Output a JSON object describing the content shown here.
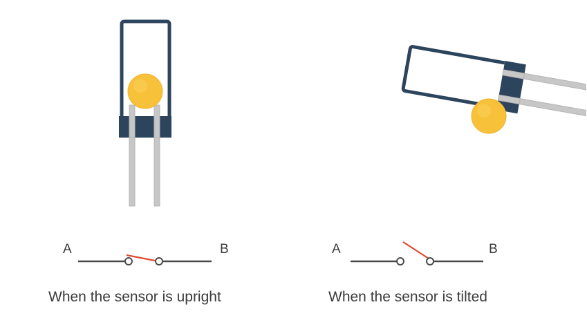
{
  "left": {
    "caption": "When the sensor is upright",
    "terminal_a": "A",
    "terminal_b": "B"
  },
  "right": {
    "caption": "When the sensor is tilted",
    "terminal_a": "A",
    "terminal_b": "B"
  },
  "colors": {
    "housing": "#2d445d",
    "ball": "#f7c13a",
    "pin": "#c7c7c7",
    "wire": "#4a4a4a",
    "switch": "#e0492d"
  }
}
